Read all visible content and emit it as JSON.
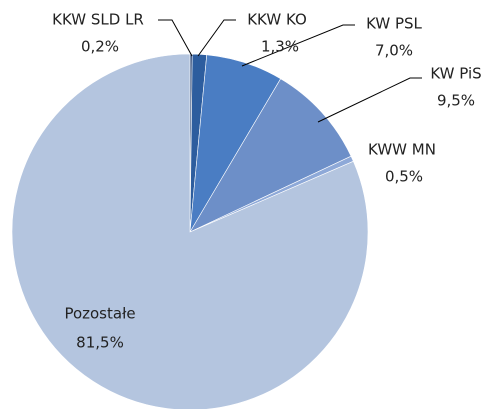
{
  "chart_data": {
    "type": "pie",
    "categories": [
      "KKW SLD LR",
      "KKW KO",
      "KW PSL",
      "KW PiS",
      "KWW MN",
      "Pozostałe"
    ],
    "values": [
      0.2,
      1.3,
      7.0,
      9.5,
      0.5,
      81.5
    ],
    "value_labels": [
      "0,2%",
      "1,3%",
      "7,0%",
      "9,5%",
      "0,5%",
      "81,5%"
    ],
    "colors": [
      "#1f3c6e",
      "#2d5d9e",
      "#4a7dc3",
      "#6d8fc8",
      "#8ea9d8",
      "#b4c5df"
    ]
  }
}
